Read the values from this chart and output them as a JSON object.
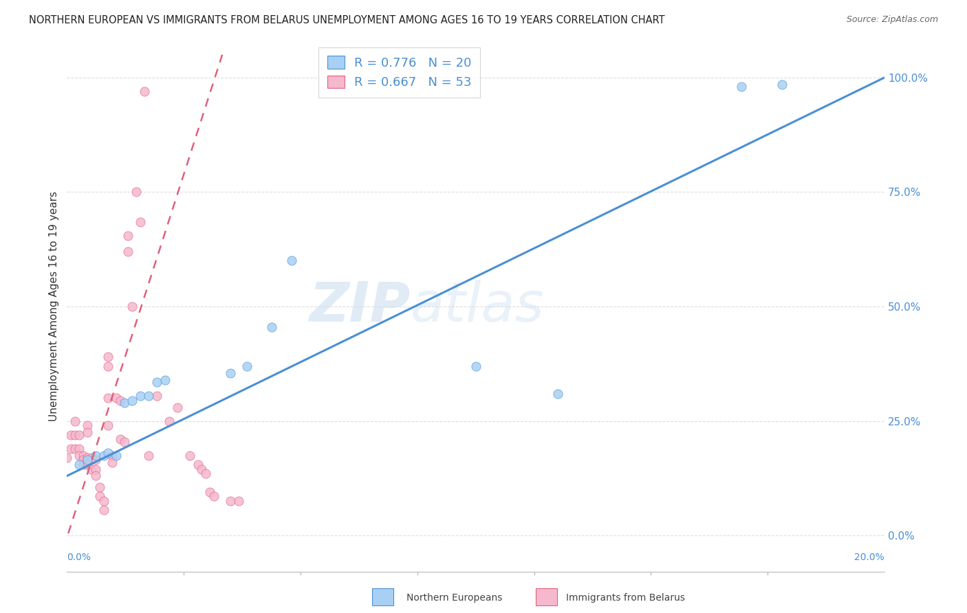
{
  "title": "NORTHERN EUROPEAN VS IMMIGRANTS FROM BELARUS UNEMPLOYMENT AMONG AGES 16 TO 19 YEARS CORRELATION CHART",
  "source": "Source: ZipAtlas.com",
  "ylabel": "Unemployment Among Ages 16 to 19 years",
  "xlim": [
    0.0,
    0.2
  ],
  "ylim": [
    -0.08,
    1.08
  ],
  "y_ticks": [
    0.0,
    0.25,
    0.5,
    0.75,
    1.0
  ],
  "y_tick_labels": [
    "0.0%",
    "25.0%",
    "50.0%",
    "75.0%",
    "100.0%"
  ],
  "blue_R": 0.776,
  "blue_N": 20,
  "pink_R": 0.667,
  "pink_N": 53,
  "blue_color": "#A8D0F5",
  "pink_color": "#F5B8CE",
  "blue_line_color": "#4A8FD4",
  "pink_line_color": "#E0607A",
  "blue_scatter": [
    [
      0.003,
      0.155
    ],
    [
      0.005,
      0.165
    ],
    [
      0.007,
      0.175
    ],
    [
      0.009,
      0.175
    ],
    [
      0.01,
      0.18
    ],
    [
      0.012,
      0.175
    ],
    [
      0.014,
      0.29
    ],
    [
      0.016,
      0.295
    ],
    [
      0.018,
      0.305
    ],
    [
      0.02,
      0.305
    ],
    [
      0.022,
      0.335
    ],
    [
      0.024,
      0.34
    ],
    [
      0.04,
      0.355
    ],
    [
      0.044,
      0.37
    ],
    [
      0.05,
      0.455
    ],
    [
      0.055,
      0.6
    ],
    [
      0.1,
      0.37
    ],
    [
      0.12,
      0.31
    ],
    [
      0.165,
      0.98
    ],
    [
      0.175,
      0.985
    ]
  ],
  "pink_scatter": [
    [
      0.0,
      0.17
    ],
    [
      0.001,
      0.22
    ],
    [
      0.001,
      0.19
    ],
    [
      0.002,
      0.25
    ],
    [
      0.002,
      0.22
    ],
    [
      0.002,
      0.19
    ],
    [
      0.003,
      0.22
    ],
    [
      0.003,
      0.19
    ],
    [
      0.003,
      0.175
    ],
    [
      0.004,
      0.175
    ],
    [
      0.004,
      0.165
    ],
    [
      0.004,
      0.155
    ],
    [
      0.005,
      0.24
    ],
    [
      0.005,
      0.225
    ],
    [
      0.005,
      0.17
    ],
    [
      0.005,
      0.155
    ],
    [
      0.006,
      0.17
    ],
    [
      0.006,
      0.145
    ],
    [
      0.007,
      0.165
    ],
    [
      0.007,
      0.145
    ],
    [
      0.007,
      0.13
    ],
    [
      0.008,
      0.105
    ],
    [
      0.008,
      0.085
    ],
    [
      0.009,
      0.075
    ],
    [
      0.009,
      0.055
    ],
    [
      0.01,
      0.39
    ],
    [
      0.01,
      0.37
    ],
    [
      0.01,
      0.3
    ],
    [
      0.01,
      0.24
    ],
    [
      0.011,
      0.175
    ],
    [
      0.011,
      0.16
    ],
    [
      0.012,
      0.3
    ],
    [
      0.013,
      0.295
    ],
    [
      0.013,
      0.21
    ],
    [
      0.014,
      0.205
    ],
    [
      0.015,
      0.655
    ],
    [
      0.015,
      0.62
    ],
    [
      0.016,
      0.5
    ],
    [
      0.017,
      0.75
    ],
    [
      0.018,
      0.685
    ],
    [
      0.019,
      0.97
    ],
    [
      0.02,
      0.175
    ],
    [
      0.022,
      0.305
    ],
    [
      0.025,
      0.25
    ],
    [
      0.027,
      0.28
    ],
    [
      0.03,
      0.175
    ],
    [
      0.032,
      0.155
    ],
    [
      0.033,
      0.145
    ],
    [
      0.034,
      0.135
    ],
    [
      0.035,
      0.095
    ],
    [
      0.036,
      0.085
    ],
    [
      0.04,
      0.075
    ],
    [
      0.042,
      0.075
    ]
  ],
  "blue_line": {
    "x0": 0.0,
    "y0": 0.13,
    "x1": 0.2,
    "y1": 1.0
  },
  "pink_line": {
    "x0": -0.002,
    "y0": -0.06,
    "x1": 0.019,
    "y1": 0.72
  },
  "pink_dashed_line": {
    "x0": 0.019,
    "y0": 0.72,
    "x1": 0.038,
    "y1": 1.05
  },
  "watermark_left": "ZIP",
  "watermark_right": "atlas",
  "background_color": "#FFFFFF",
  "grid_color": "#DDDDDD"
}
